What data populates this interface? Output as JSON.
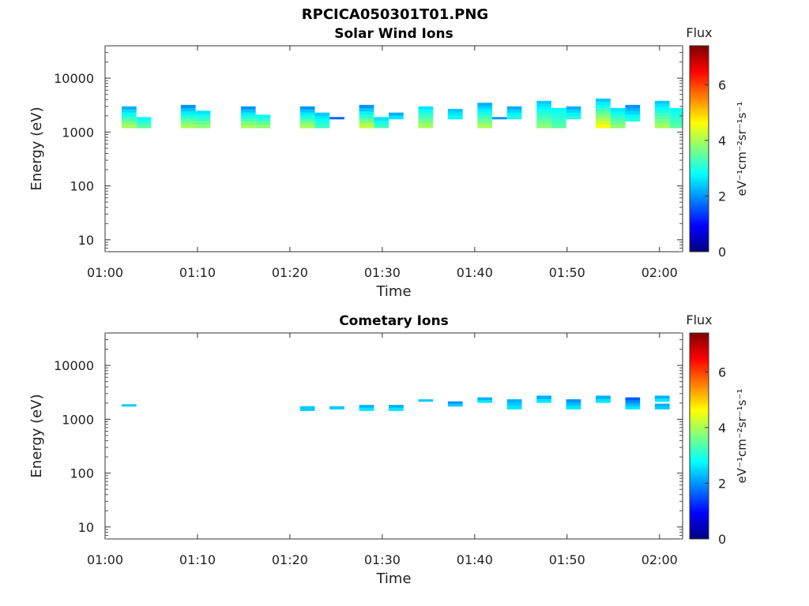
{
  "figure": {
    "title": "RPCICA050301T01.PNG"
  },
  "chart_data": [
    {
      "type": "heatmap",
      "title": "Solar Wind Ions",
      "xlabel": "Time",
      "ylabel": "Energy (eV)",
      "x_ticks": [
        "01:00",
        "01:10",
        "01:20",
        "01:30",
        "01:40",
        "01:50",
        "02:00"
      ],
      "y_ticks": [
        "10",
        "100",
        "1000",
        "10000"
      ],
      "x_range_minutes": [
        0,
        62.5
      ],
      "y_scale": "log",
      "y_range_eV": [
        6,
        40000
      ],
      "colorbar": {
        "title": "Flux",
        "unit": "eV⁻¹cm⁻²sr⁻¹s⁻¹",
        "ticks": [
          "0",
          "2",
          "4",
          "6"
        ],
        "range": [
          0,
          7.4
        ],
        "colormap": "jet"
      },
      "blocks": [
        {
          "t0": 1.8,
          "t1": 3.4,
          "e_lo": 1200,
          "e_hi": 3000,
          "flux_lo": 4.0,
          "flux_hi": 2.2
        },
        {
          "t0": 3.4,
          "t1": 5.0,
          "e_lo": 1200,
          "e_hi": 1900,
          "flux_lo": 3.4,
          "flux_hi": 2.8
        },
        {
          "t0": 8.2,
          "t1": 9.8,
          "e_lo": 1200,
          "e_hi": 3200,
          "flux_lo": 4.0,
          "flux_hi": 2.0
        },
        {
          "t0": 9.8,
          "t1": 11.4,
          "e_lo": 1200,
          "e_hi": 2500,
          "flux_lo": 3.8,
          "flux_hi": 2.6
        },
        {
          "t0": 14.7,
          "t1": 16.3,
          "e_lo": 1200,
          "e_hi": 3000,
          "flux_lo": 4.0,
          "flux_hi": 2.0
        },
        {
          "t0": 16.3,
          "t1": 17.9,
          "e_lo": 1200,
          "e_hi": 2100,
          "flux_lo": 3.8,
          "flux_hi": 2.8
        },
        {
          "t0": 21.1,
          "t1": 22.7,
          "e_lo": 1200,
          "e_hi": 3000,
          "flux_lo": 4.0,
          "flux_hi": 2.0
        },
        {
          "t0": 22.7,
          "t1": 24.3,
          "e_lo": 1200,
          "e_hi": 2300,
          "flux_lo": 3.2,
          "flux_hi": 2.4
        },
        {
          "t0": 24.3,
          "t1": 25.9,
          "e_lo": 1750,
          "e_hi": 1900,
          "flux_lo": 1.6,
          "flux_hi": 1.6
        },
        {
          "t0": 27.5,
          "t1": 29.1,
          "e_lo": 1200,
          "e_hi": 3200,
          "flux_lo": 4.2,
          "flux_hi": 2.0
        },
        {
          "t0": 29.1,
          "t1": 30.7,
          "e_lo": 1200,
          "e_hi": 1900,
          "flux_lo": 3.2,
          "flux_hi": 2.6
        },
        {
          "t0": 30.7,
          "t1": 32.3,
          "e_lo": 1750,
          "e_hi": 2300,
          "flux_lo": 2.6,
          "flux_hi": 2.2
        },
        {
          "t0": 33.9,
          "t1": 35.5,
          "e_lo": 1200,
          "e_hi": 3000,
          "flux_lo": 4.0,
          "flux_hi": 2.6
        },
        {
          "t0": 37.1,
          "t1": 38.7,
          "e_lo": 1750,
          "e_hi": 2700,
          "flux_lo": 2.8,
          "flux_hi": 2.4
        },
        {
          "t0": 40.3,
          "t1": 41.9,
          "e_lo": 1200,
          "e_hi": 3500,
          "flux_lo": 4.0,
          "flux_hi": 2.2
        },
        {
          "t0": 41.9,
          "t1": 43.5,
          "e_lo": 1750,
          "e_hi": 1900,
          "flux_lo": 2.0,
          "flux_hi": 2.0
        },
        {
          "t0": 43.5,
          "t1": 45.1,
          "e_lo": 1750,
          "e_hi": 3000,
          "flux_lo": 3.0,
          "flux_hi": 2.2
        },
        {
          "t0": 46.7,
          "t1": 48.3,
          "e_lo": 1200,
          "e_hi": 3800,
          "flux_lo": 3.8,
          "flux_hi": 2.4
        },
        {
          "t0": 48.3,
          "t1": 49.9,
          "e_lo": 1200,
          "e_hi": 2800,
          "flux_lo": 3.4,
          "flux_hi": 2.8
        },
        {
          "t0": 49.9,
          "t1": 51.5,
          "e_lo": 1750,
          "e_hi": 3000,
          "flux_lo": 3.0,
          "flux_hi": 2.2
        },
        {
          "t0": 53.1,
          "t1": 54.7,
          "e_lo": 1200,
          "e_hi": 4200,
          "flux_lo": 4.6,
          "flux_hi": 2.4
        },
        {
          "t0": 54.7,
          "t1": 56.3,
          "e_lo": 1200,
          "e_hi": 2800,
          "flux_lo": 3.8,
          "flux_hi": 2.6
        },
        {
          "t0": 56.3,
          "t1": 57.9,
          "e_lo": 1600,
          "e_hi": 3200,
          "flux_lo": 3.0,
          "flux_hi": 2.0
        },
        {
          "t0": 59.5,
          "t1": 61.1,
          "e_lo": 1200,
          "e_hi": 3800,
          "flux_lo": 4.0,
          "flux_hi": 2.4
        },
        {
          "t0": 61.1,
          "t1": 62.5,
          "e_lo": 1200,
          "e_hi": 2800,
          "flux_lo": 3.4,
          "flux_hi": 2.8
        }
      ]
    },
    {
      "type": "heatmap",
      "title": "Cometary Ions",
      "xlabel": "Time",
      "ylabel": "Energy (eV)",
      "x_ticks": [
        "01:00",
        "01:10",
        "01:20",
        "01:30",
        "01:40",
        "01:50",
        "02:00"
      ],
      "y_ticks": [
        "10",
        "100",
        "1000",
        "10000"
      ],
      "x_range_minutes": [
        0,
        62.5
      ],
      "y_scale": "log",
      "y_range_eV": [
        6,
        40000
      ],
      "colorbar": {
        "title": "Flux",
        "unit": "eV⁻¹cm⁻²sr⁻¹s⁻¹",
        "ticks": [
          "0",
          "2",
          "4",
          "6"
        ],
        "range": [
          0,
          7.4
        ],
        "colormap": "jet"
      },
      "blocks": [
        {
          "t0": 1.8,
          "t1": 3.4,
          "e_lo": 1750,
          "e_hi": 1900,
          "flux_lo": 2.4,
          "flux_hi": 2.4
        },
        {
          "t0": 21.1,
          "t1": 22.7,
          "e_lo": 1450,
          "e_hi": 1750,
          "flux_lo": 2.6,
          "flux_hi": 2.2
        },
        {
          "t0": 24.3,
          "t1": 25.9,
          "e_lo": 1550,
          "e_hi": 1750,
          "flux_lo": 2.4,
          "flux_hi": 2.4
        },
        {
          "t0": 27.5,
          "t1": 29.1,
          "e_lo": 1450,
          "e_hi": 1850,
          "flux_lo": 2.6,
          "flux_hi": 2.2
        },
        {
          "t0": 30.7,
          "t1": 32.3,
          "e_lo": 1450,
          "e_hi": 1850,
          "flux_lo": 2.6,
          "flux_hi": 2.2
        },
        {
          "t0": 33.9,
          "t1": 35.5,
          "e_lo": 2150,
          "e_hi": 2350,
          "flux_lo": 2.4,
          "flux_hi": 2.4
        },
        {
          "t0": 37.1,
          "t1": 38.7,
          "e_lo": 1750,
          "e_hi": 2150,
          "flux_lo": 2.4,
          "flux_hi": 2.0
        },
        {
          "t0": 40.3,
          "t1": 41.9,
          "e_lo": 2050,
          "e_hi": 2550,
          "flux_lo": 2.6,
          "flux_hi": 2.2
        },
        {
          "t0": 43.5,
          "t1": 45.1,
          "e_lo": 1550,
          "e_hi": 2350,
          "flux_lo": 2.6,
          "flux_hi": 2.2
        },
        {
          "t0": 46.7,
          "t1": 48.3,
          "e_lo": 2050,
          "e_hi": 2750,
          "flux_lo": 2.6,
          "flux_hi": 2.2
        },
        {
          "t0": 49.9,
          "t1": 51.5,
          "e_lo": 1550,
          "e_hi": 2350,
          "flux_lo": 2.6,
          "flux_hi": 2.0
        },
        {
          "t0": 53.1,
          "t1": 54.7,
          "e_lo": 2050,
          "e_hi": 2750,
          "flux_lo": 2.6,
          "flux_hi": 2.2
        },
        {
          "t0": 56.3,
          "t1": 57.9,
          "e_lo": 1550,
          "e_hi": 2550,
          "flux_lo": 2.6,
          "flux_hi": 1.6
        },
        {
          "t0": 59.5,
          "t1": 61.1,
          "e_lo": 1550,
          "e_hi": 1950,
          "flux_lo": 2.4,
          "flux_hi": 2.2
        },
        {
          "t0": 59.5,
          "t1": 61.1,
          "e_lo": 2150,
          "e_hi": 2750,
          "flux_lo": 2.6,
          "flux_hi": 2.2
        }
      ]
    }
  ]
}
